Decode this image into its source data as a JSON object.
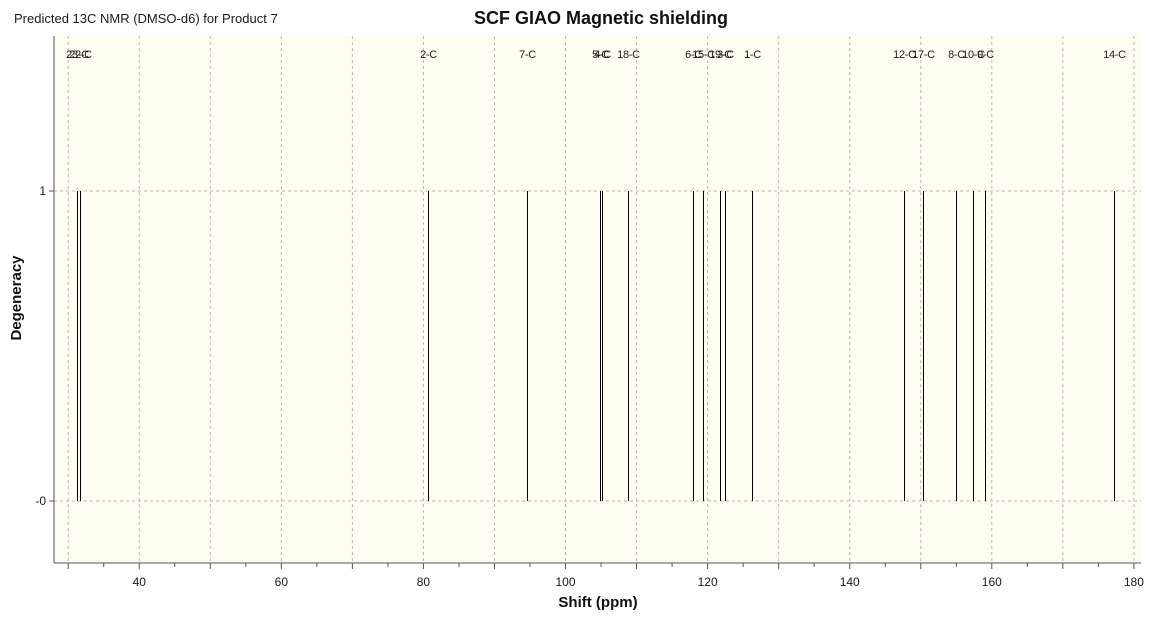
{
  "window": {
    "title": "Predicted 13C NMR (DMSO-d6) for Product 7"
  },
  "chart_data": {
    "type": "bar",
    "title": "SCF GIAO Magnetic shielding",
    "xlabel": "Shift (ppm)",
    "ylabel": "Degeneracy",
    "xlim": [
      28,
      181
    ],
    "ylim": [
      -0.2,
      1.5
    ],
    "x_ticks": [
      40,
      60,
      80,
      100,
      120,
      140,
      160,
      180
    ],
    "y_ticks": [
      {
        "value": 1,
        "label": "1"
      },
      {
        "value": 0,
        "label": "-0"
      }
    ],
    "grid": true,
    "peaks": [
      {
        "label": "23-C",
        "shift": 31.3,
        "degeneracy": 1
      },
      {
        "label": "22-C",
        "shift": 31.7,
        "degeneracy": 1
      },
      {
        "label": "2-C",
        "shift": 80.7,
        "degeneracy": 1
      },
      {
        "label": "7-C",
        "shift": 94.6,
        "degeneracy": 1
      },
      {
        "label": "5-C",
        "shift": 104.9,
        "degeneracy": 1
      },
      {
        "label": "4-C",
        "shift": 105.1,
        "degeneracy": 1
      },
      {
        "label": "18-C",
        "shift": 108.8,
        "degeneracy": 1
      },
      {
        "label": "6-C",
        "shift": 117.9,
        "degeneracy": 1
      },
      {
        "label": "15-C",
        "shift": 119.3,
        "degeneracy": 1
      },
      {
        "label": "19-C",
        "shift": 121.8,
        "degeneracy": 1
      },
      {
        "label": "3-C",
        "shift": 122.4,
        "degeneracy": 1
      },
      {
        "label": "1-C",
        "shift": 126.2,
        "degeneracy": 1
      },
      {
        "label": "12-C",
        "shift": 147.6,
        "degeneracy": 1
      },
      {
        "label": "17-C",
        "shift": 150.3,
        "degeneracy": 1
      },
      {
        "label": "8-C",
        "shift": 155.0,
        "degeneracy": 1
      },
      {
        "label": "10-C",
        "shift": 157.4,
        "degeneracy": 1
      },
      {
        "label": "9-C",
        "shift": 159.0,
        "degeneracy": 1
      },
      {
        "label": "14-C",
        "shift": 177.2,
        "degeneracy": 1
      }
    ],
    "colors": {
      "plot_background": "#fffdf2",
      "peak": "#000000",
      "grid": "#b8b8b8",
      "axis": "#555555"
    }
  }
}
